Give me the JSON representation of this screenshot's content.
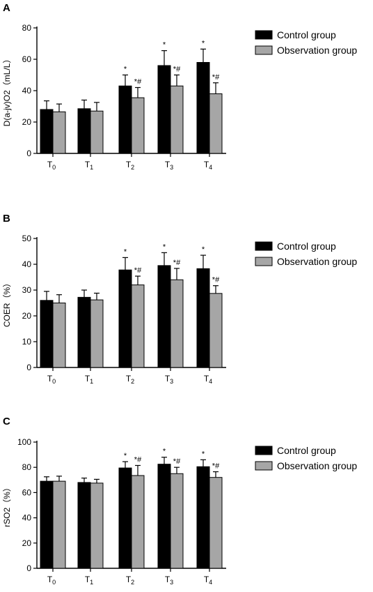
{
  "chart_data": [
    {
      "type": "bar",
      "panel": "A",
      "ylabel": "D(a-jv)O2（mL/L）",
      "ylim": [
        0,
        80
      ],
      "yticks": [
        0,
        20,
        40,
        60,
        80
      ],
      "categories": [
        {
          "main": "T",
          "sub": "0"
        },
        {
          "main": "T",
          "sub": "1"
        },
        {
          "main": "T",
          "sub": "2"
        },
        {
          "main": "T",
          "sub": "3"
        },
        {
          "main": "T",
          "sub": "4"
        }
      ],
      "series": [
        {
          "name": "Control group",
          "color": "#000000",
          "values": [
            28,
            28.5,
            43,
            56,
            58
          ],
          "errors": [
            5.5,
            5.5,
            7,
            9.5,
            8.5
          ],
          "sig": [
            "",
            "",
            "*",
            "*",
            "*"
          ]
        },
        {
          "name": "Observation group",
          "color": "#a6a6a6",
          "values": [
            26.5,
            27,
            35.5,
            43,
            38
          ],
          "errors": [
            5,
            5.5,
            6.5,
            7,
            7
          ],
          "sig": [
            "",
            "",
            "*#",
            "*#",
            "*#"
          ]
        }
      ]
    },
    {
      "type": "bar",
      "panel": "B",
      "ylabel": "COER（%）",
      "ylim": [
        0,
        50
      ],
      "yticks": [
        0,
        10,
        20,
        30,
        40,
        50
      ],
      "categories": [
        {
          "main": "T",
          "sub": "0"
        },
        {
          "main": "T",
          "sub": "1"
        },
        {
          "main": "T",
          "sub": "2"
        },
        {
          "main": "T",
          "sub": "3"
        },
        {
          "main": "T",
          "sub": "4"
        }
      ],
      "series": [
        {
          "name": "Control group",
          "color": "#000000",
          "values": [
            26,
            27.2,
            37.8,
            39.5,
            38.3
          ],
          "errors": [
            3.5,
            2.8,
            4.8,
            5,
            5.2
          ],
          "sig": [
            "",
            "",
            "*",
            "*",
            "*"
          ]
        },
        {
          "name": "Observation group",
          "color": "#a6a6a6",
          "values": [
            25,
            26.2,
            32,
            34,
            28.7
          ],
          "errors": [
            3.2,
            2.6,
            3.4,
            4.4,
            3
          ],
          "sig": [
            "",
            "",
            "*#",
            "*#",
            "*#"
          ]
        }
      ]
    },
    {
      "type": "bar",
      "panel": "C",
      "ylabel": "rSO2（%）",
      "ylim": [
        0,
        100
      ],
      "yticks": [
        0,
        20,
        40,
        60,
        80,
        100
      ],
      "categories": [
        {
          "main": "T",
          "sub": "0"
        },
        {
          "main": "T",
          "sub": "1"
        },
        {
          "main": "T",
          "sub": "2"
        },
        {
          "main": "T",
          "sub": "3"
        },
        {
          "main": "T",
          "sub": "4"
        }
      ],
      "series": [
        {
          "name": "Control group",
          "color": "#000000",
          "values": [
            69,
            68,
            79.5,
            82.5,
            80.5
          ],
          "errors": [
            3.5,
            3.5,
            5,
            5.5,
            5.5
          ],
          "sig": [
            "",
            "",
            "*",
            "*",
            "*"
          ]
        },
        {
          "name": "Observation group",
          "color": "#a6a6a6",
          "values": [
            69,
            67.5,
            73.5,
            75,
            72
          ],
          "errors": [
            4,
            3,
            8,
            5,
            4.5
          ],
          "sig": [
            "",
            "",
            "*#",
            "*#",
            "*#"
          ]
        }
      ]
    }
  ]
}
